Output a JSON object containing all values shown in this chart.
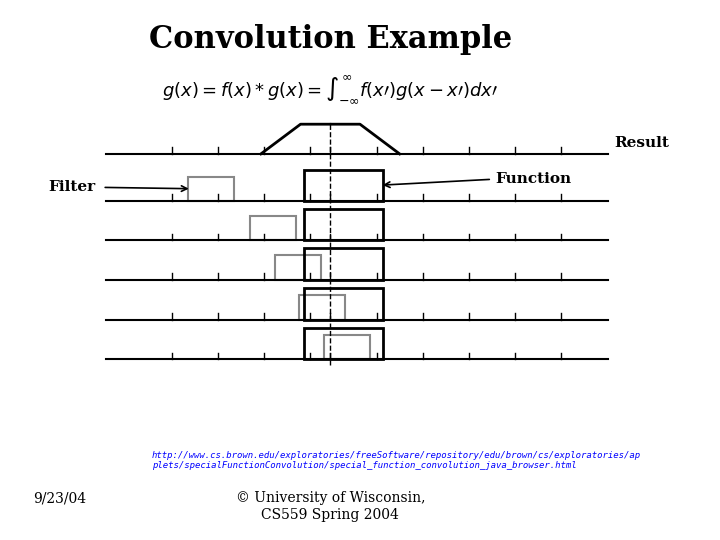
{
  "title": "Convolution Example",
  "formula": "$g(x) = f(x)*g(x) = \\int_{-\\infty}^{\\infty} f(x\\')g(x-x\\')dx\\' $",
  "url_line1": "http://www.cs.brown.edu/exploratories/freeSoftware/repository/edu/brown/cs/exploratories/ap",
  "url_line2": "plets/specialFunctionConvolution/special_function_convolution_java_browser.html",
  "footer_line1": "© University of Wisconsin,",
  "footer_line2": "CS559 Spring 2004",
  "date": "9/23/04",
  "result_label": "Result",
  "filter_label": "Filter",
  "function_label": "Function",
  "bg_color": "#ffffff",
  "title_fontsize": 22,
  "formula_fontsize": 13,
  "label_fontsize": 12
}
